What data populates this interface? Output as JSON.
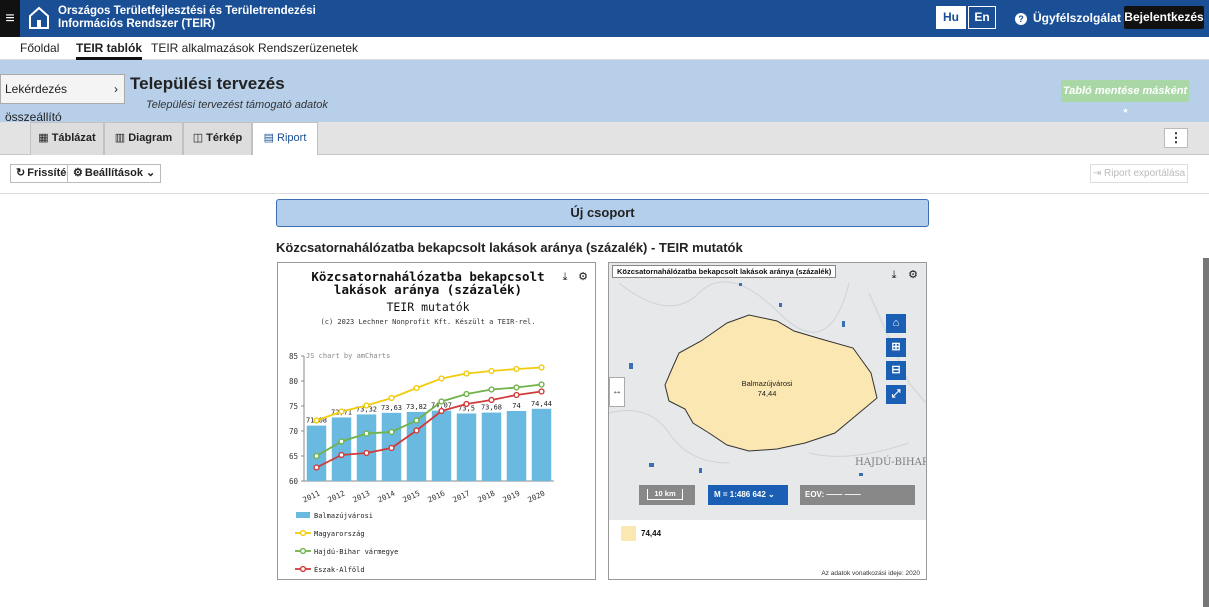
{
  "header": {
    "app_title": "Országos Területfejlesztési és Területrendezési Információs Rendszer (TEIR)",
    "lang_hu": "Hu",
    "lang_en": "En",
    "support": "Ügyfélszolgálat",
    "login": "Bejelentkezés",
    "menu_icon": "hamburger-icon",
    "colors": {
      "primary": "#1a4f96",
      "dark": "#111111"
    }
  },
  "nav": {
    "items": [
      "Főoldal",
      "TEIR tablók",
      "TEIR alkalmazások",
      "Rendszerüzenetek"
    ],
    "active": "TEIR tablók"
  },
  "page": {
    "query_button": "Lekérdezés összeállító",
    "title": "Települési tervezés",
    "subtitle": "Települési tervezést támogató adatok",
    "save_button": "Tabló mentése másként *"
  },
  "tabs": {
    "items": [
      {
        "label": "Táblázat",
        "icon": "table-icon"
      },
      {
        "label": "Diagram",
        "icon": "bar-chart-icon"
      },
      {
        "label": "Térkép",
        "icon": "map-icon"
      },
      {
        "label": "Riport",
        "icon": "report-icon"
      }
    ],
    "active": "Riport",
    "menu_icon": "kebab-icon"
  },
  "toolbar": {
    "refresh": "Frissítés",
    "settings": "Beállítások",
    "export": "Riport exportálása"
  },
  "report": {
    "group_header": "Új csoport",
    "section_title": "Közcsatornahálózatba bekapcsolt lakások aránya (százalék) - TEIR mutatók"
  },
  "chart_data": {
    "type": "bar",
    "title_line1": "Közcsatornahálózatba bekapcsolt",
    "title_line2": "lakások aránya (százalék)",
    "subtitle": "TEIR mutatók",
    "copyright": "(c) 2023 Lechner Nonprofit Kft. Készült a TEIR-rel.",
    "credit": "JS chart by amCharts",
    "categories": [
      "2011",
      "2012",
      "2013",
      "2014",
      "2015",
      "2016",
      "2017",
      "2018",
      "2019",
      "2020"
    ],
    "ylim": [
      60,
      85
    ],
    "yticks": [
      60,
      65,
      70,
      75,
      80,
      85
    ],
    "legend_position": "bottom",
    "bar_series": {
      "name": "Balmazújvárosi",
      "color": "#6ab9e0",
      "values": [
        71.08,
        72.71,
        73.32,
        73.63,
        73.82,
        74.07,
        73.5,
        73.68,
        74,
        74.44
      ],
      "labels": [
        "71,08",
        "72,71",
        "73,32",
        "73,63",
        "73,82",
        "74,07",
        "73,5",
        "73,68",
        "74",
        "74,44"
      ]
    },
    "line_series": [
      {
        "name": "Magyarország",
        "color": "#f2cc0c",
        "values": [
          72.1,
          73.9,
          75.1,
          76.6,
          78.6,
          80.5,
          81.5,
          82,
          82.4,
          82.7
        ]
      },
      {
        "name": "Hajdú-Bihar vármegye",
        "color": "#6fb34a",
        "values": [
          65.0,
          67.9,
          69.5,
          69.8,
          72.1,
          75.9,
          77.4,
          78.3,
          78.7,
          79.3
        ]
      },
      {
        "name": "Észak-Alföld",
        "color": "#d13b3b",
        "values": [
          62.7,
          65.2,
          65.6,
          66.6,
          70.1,
          74.0,
          75.4,
          76.2,
          77.2,
          77.9
        ]
      }
    ]
  },
  "map": {
    "label": "Közcsatornahálózatba bekapcsolt lakások aránya (százalék)",
    "region_name": "Balmazújvárosi",
    "region_value": "74,44",
    "county_label": "HAJDÚ-BIHAR",
    "scale": "10 km",
    "ratio": "M = 1:486 642",
    "eov": "EOV:  ——  ——",
    "legend_value": "74,44",
    "data_date": "Az adatok vonatkozási ideje: 2020",
    "region_color": "#fbe7b2"
  }
}
